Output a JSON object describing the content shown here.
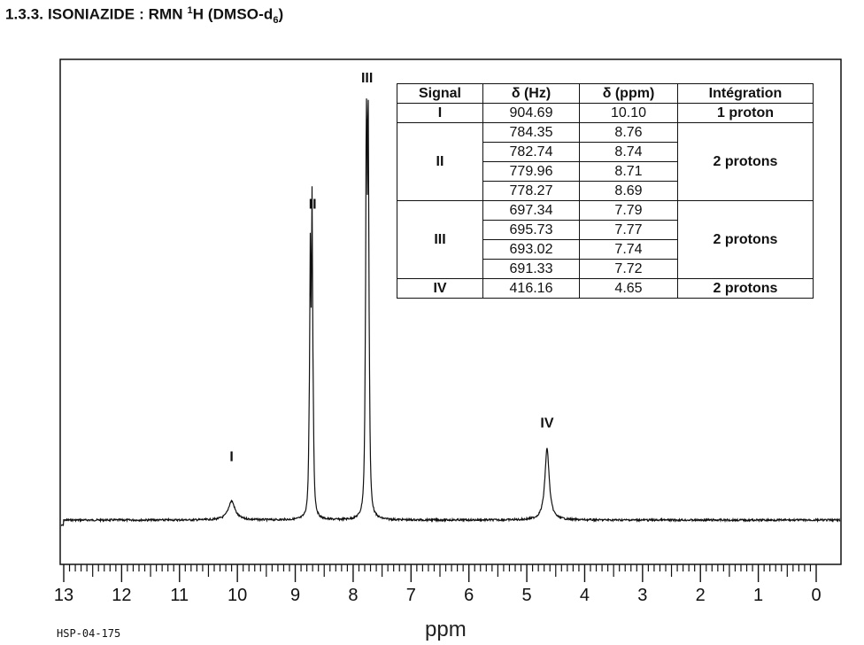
{
  "heading": {
    "prefix": "1.3.3. ISONIAZIDE : RMN ",
    "sup": "1",
    "mid": "H (DMSO-d",
    "sub": "6",
    "suffix": ")"
  },
  "footnote": "HSP-04-175",
  "table": {
    "headers": [
      "Signal",
      "δ (Hz)",
      "δ (ppm)",
      "Intégration"
    ],
    "groups": [
      {
        "signal": "I",
        "integration": "1 proton",
        "rows": [
          {
            "hz": "904.69",
            "ppm": "10.10"
          }
        ]
      },
      {
        "signal": "II",
        "integration": "2 protons",
        "rows": [
          {
            "hz": "784.35",
            "ppm": "8.76"
          },
          {
            "hz": "782.74",
            "ppm": "8.74"
          },
          {
            "hz": "779.96",
            "ppm": "8.71"
          },
          {
            "hz": "778.27",
            "ppm": "8.69"
          }
        ]
      },
      {
        "signal": "III",
        "integration": "2 protons",
        "rows": [
          {
            "hz": "697.34",
            "ppm": "7.79"
          },
          {
            "hz": "695.73",
            "ppm": "7.77"
          },
          {
            "hz": "693.02",
            "ppm": "7.74"
          },
          {
            "hz": "691.33",
            "ppm": "7.72"
          }
        ]
      },
      {
        "signal": "IV",
        "integration": "2 protons",
        "rows": [
          {
            "hz": "416.16",
            "ppm": "4.65"
          }
        ]
      }
    ]
  },
  "chart_data": {
    "type": "line",
    "title": "1.3.3. ISONIAZIDE : RMN 1H (DMSO-d6)",
    "xlabel": "ppm",
    "ylabel": "",
    "xlim": [
      13,
      0
    ],
    "x_reversed": true,
    "ylim": [
      0,
      1
    ],
    "grid": false,
    "x_ticks": [
      "13",
      "12",
      "11",
      "10",
      "9",
      "8",
      "7",
      "6",
      "5",
      "4",
      "3",
      "2",
      "1",
      "0"
    ],
    "peaks": [
      {
        "label": "I",
        "ppm": 10.1,
        "height": 0.045,
        "width": 0.07
      },
      {
        "label": "II",
        "ppm": 8.76,
        "height": 0.09,
        "width": 0.012
      },
      {
        "label": "II",
        "ppm": 8.74,
        "height": 0.56,
        "width": 0.012
      },
      {
        "label": "II",
        "ppm": 8.71,
        "height": 0.68,
        "width": 0.012
      },
      {
        "label": "II",
        "ppm": 8.69,
        "height": 0.12,
        "width": 0.012
      },
      {
        "label": "III",
        "ppm": 7.79,
        "height": 0.12,
        "width": 0.012
      },
      {
        "label": "III",
        "ppm": 7.77,
        "height": 1.0,
        "width": 0.012
      },
      {
        "label": "III",
        "ppm": 7.74,
        "height": 0.92,
        "width": 0.012
      },
      {
        "label": "III",
        "ppm": 7.72,
        "height": 0.12,
        "width": 0.012
      },
      {
        "label": "IV",
        "ppm": 4.65,
        "height": 0.17,
        "width": 0.045
      }
    ],
    "peak_labels": [
      {
        "text": "I",
        "ppm": 10.1,
        "height": 0.14
      },
      {
        "text": "II",
        "ppm": 8.7,
        "height": 0.74
      },
      {
        "text": "III",
        "ppm": 7.76,
        "height": 1.04
      },
      {
        "text": "IV",
        "ppm": 4.65,
        "height": 0.22
      }
    ]
  }
}
